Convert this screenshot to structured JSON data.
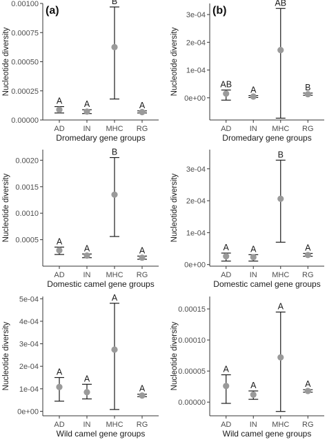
{
  "panel_labels": [
    "(a)",
    "(b)"
  ],
  "colors": {
    "point": "#9a9a9a",
    "errorbar": "#1a1a1a",
    "axis": "#333333"
  },
  "chart_data": [
    {
      "type": "scatter",
      "panel": "(a)",
      "xlabel": "Dromedary gene groups",
      "ylabel": "Nucleotide diversity",
      "categories": [
        "AD",
        "IN",
        "MHC",
        "RG"
      ],
      "values": [
        8.8e-05,
        7.2e-05,
        0.000625,
        6.8e-05
      ],
      "lower": [
        6e-05,
        5.5e-05,
        0.00018,
        6e-05
      ],
      "upper": [
        0.000115,
        8.8e-05,
        0.00097,
        7.8e-05
      ],
      "letters": [
        "A",
        "A",
        "B",
        "A"
      ],
      "ylim": [
        0,
        0.001
      ],
      "yticks": [
        0,
        0.00025,
        0.0005,
        0.00075,
        0.001
      ],
      "ytick_labels": [
        "0.00000",
        "0.00025",
        "0.00050",
        "0.00075",
        "0.00100"
      ]
    },
    {
      "type": "scatter",
      "panel": "(b)",
      "xlabel": "Dromedary gene groups",
      "ylabel": "Nucleotide diversity",
      "categories": [
        "AD",
        "IN",
        "MHC",
        "RG"
      ],
      "values": [
        1.5e-05,
        4.5e-06,
        0.000172,
        1.3e-05
      ],
      "lower": [
        -8.5e-06,
        1e-06,
        -7.35e-05,
        9e-06
      ],
      "upper": [
        2.8e-05,
        8e-06,
        0.000322,
        1.7e-05
      ],
      "letters": [
        "AB",
        "A",
        "AB",
        "B"
      ],
      "ylim": [
        -8e-05,
        0.00034
      ],
      "yticks": [
        0,
        0.0001,
        0.0002,
        0.0003
      ],
      "ytick_labels": [
        "0e+00",
        "1e-04",
        "2e-04",
        "3e-04"
      ]
    },
    {
      "type": "scatter",
      "panel": "(a)",
      "xlabel": "Domestic camel gene groups",
      "ylabel": "Nucleotide diversity",
      "categories": [
        "AD",
        "IN",
        "MHC",
        "RG"
      ],
      "values": [
        0.0003,
        0.0002,
        0.00135,
        0.00016
      ],
      "lower": [
        0.00022,
        0.00016,
        0.00056,
        0.00013
      ],
      "upper": [
        0.00036,
        0.00023,
        0.00205,
        0.00019
      ],
      "letters": [
        "A",
        "A",
        "B",
        "A"
      ],
      "ylim": [
        0,
        0.0022
      ],
      "yticks": [
        0.0005,
        0.001,
        0.0015,
        0.002
      ],
      "ytick_labels": [
        "0.0005",
        "0.0010",
        "0.0015",
        "0.0020"
      ]
    },
    {
      "type": "scatter",
      "panel": "(b)",
      "xlabel": "Domestic camel gene groups",
      "ylabel": "Nucleotide diversity",
      "categories": [
        "AD",
        "IN",
        "MHC",
        "RG"
      ],
      "values": [
        2.6e-05,
        2.3e-05,
        0.000206,
        3e-05
      ],
      "lower": [
        1.1e-05,
        1.1e-05,
        7e-05,
        2.6e-05
      ],
      "upper": [
        3.6e-05,
        3.1e-05,
        0.000327,
        3.5e-05
      ],
      "letters": [
        "A",
        "A",
        "B",
        "A"
      ],
      "ylim": [
        -5e-06,
        0.00036
      ],
      "yticks": [
        0,
        0.0001,
        0.0002,
        0.0003
      ],
      "ytick_labels": [
        "0e+00",
        "1e-04",
        "2e-04",
        "3e-04"
      ]
    },
    {
      "type": "scatter",
      "panel": "(a)",
      "xlabel": "Wild camel gene groups",
      "ylabel": "Nucleotide diversity",
      "categories": [
        "AD",
        "IN",
        "MHC",
        "RG"
      ],
      "values": [
        0.000108,
        8.5e-05,
        0.000274,
        7e-05
      ],
      "lower": [
        4.5e-05,
        5.5e-05,
        8e-06,
        6.5e-05
      ],
      "upper": [
        0.00015,
        0.00012,
        0.00048,
        7.6e-05
      ],
      "letters": [
        "A",
        "A",
        "A",
        "A"
      ],
      "ylim": [
        -2e-05,
        0.00051
      ],
      "yticks": [
        0,
        0.0001,
        0.0002,
        0.0003,
        0.0004,
        0.0005
      ],
      "ytick_labels": [
        "0e+00",
        "1e-04",
        "2e-04",
        "3e-04",
        "4e-04",
        "5e-04"
      ]
    },
    {
      "type": "scatter",
      "panel": "(b)",
      "xlabel": "Wild camel gene groups",
      "ylabel": "Nucleotide diversity",
      "categories": [
        "AD",
        "IN",
        "MHC",
        "RG"
      ],
      "values": [
        2.6e-05,
        1.2e-05,
        7.2e-05,
        1.8e-05
      ],
      "lower": [
        -2e-06,
        4.5e-06,
        -1.5e-05,
        1.6e-05
      ],
      "upper": [
        4.4e-05,
        1.8e-05,
        0.000145,
        2e-05
      ],
      "letters": [
        "A",
        "A",
        "A",
        "A"
      ],
      "ylim": [
        -2.2e-05,
        0.00017
      ],
      "yticks": [
        0,
        5e-05,
        0.0001,
        0.00015
      ],
      "ytick_labels": [
        "0.00000",
        "0.00005",
        "0.00010",
        "0.00015"
      ]
    }
  ]
}
